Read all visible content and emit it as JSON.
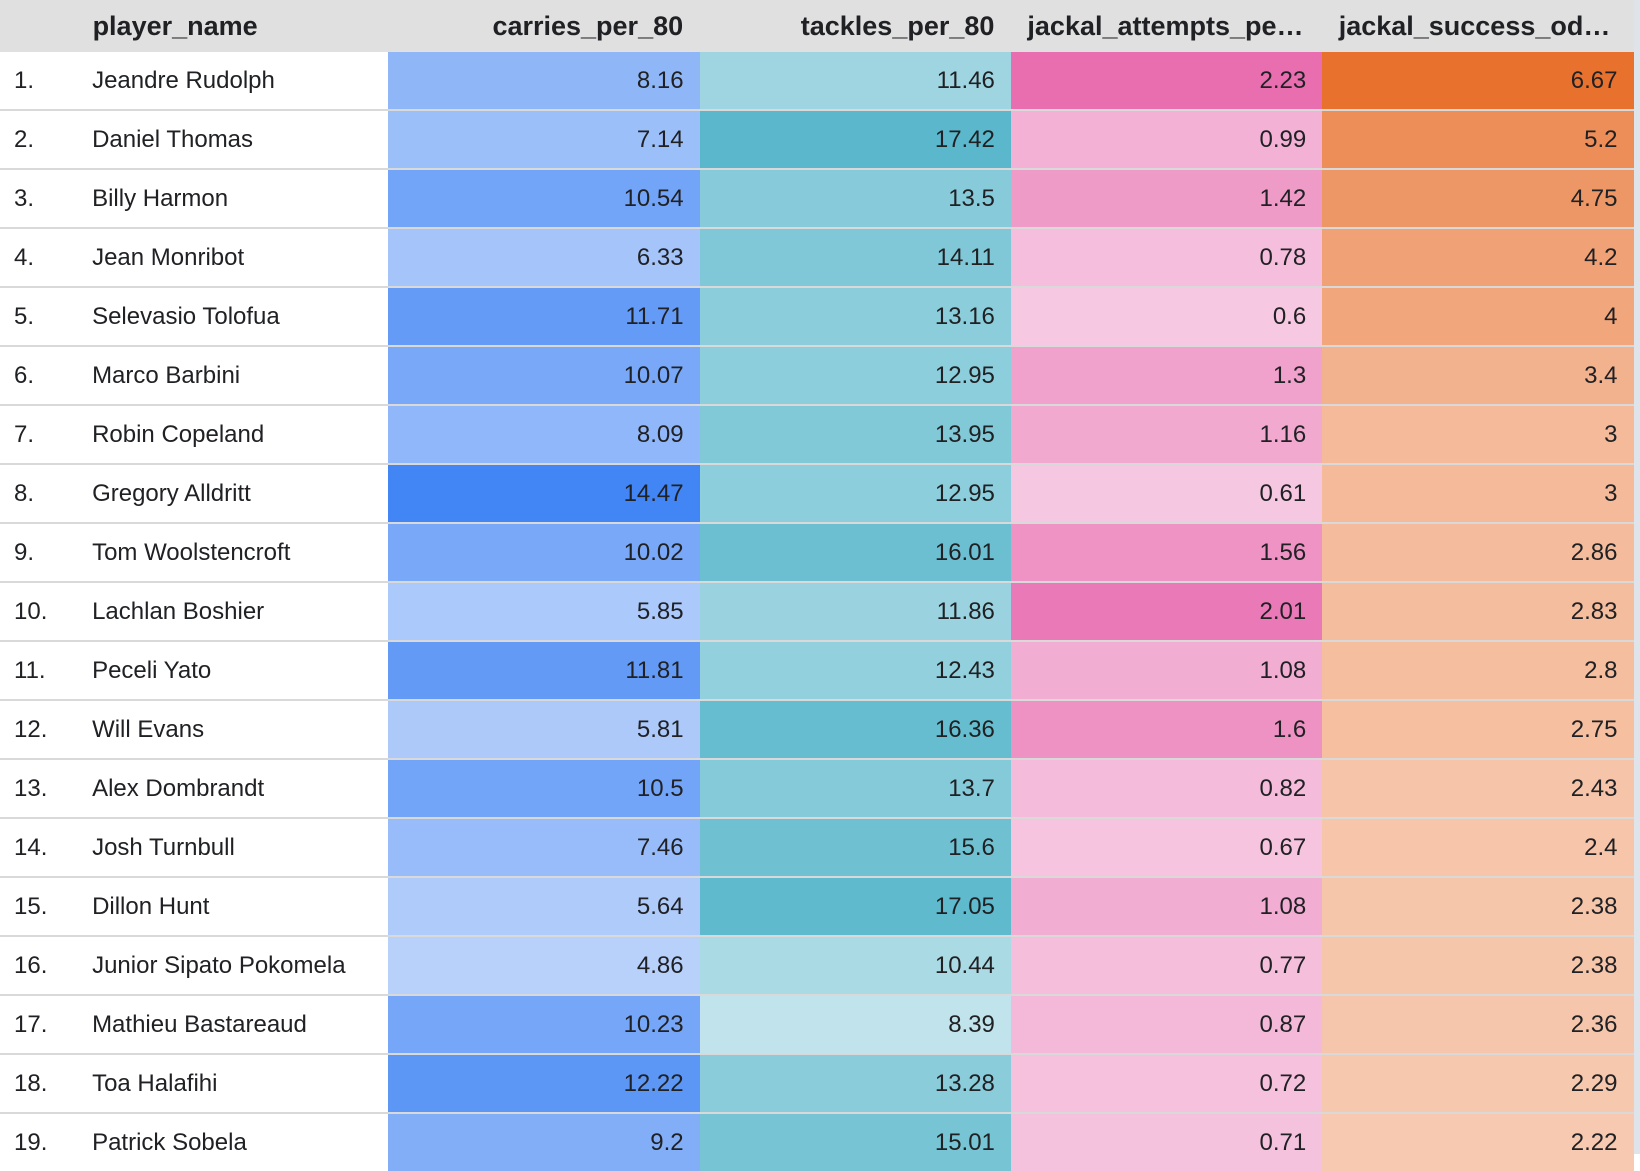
{
  "columns": {
    "index": "",
    "player_name": "player_name",
    "carries": "carries_per_80",
    "tackles": "tackles_per_80",
    "jackal_attempts": "jackal_attempts_per…",
    "jackal_success": "jackal_success_odd…"
  },
  "colors": {
    "carries": "#4285f4",
    "tackles": "#5bb8cc",
    "jackal_attempts": "#e86eb0",
    "jackal_success": "#e8712e"
  },
  "color_ranges": {
    "carries": [
      4.86,
      14.47
    ],
    "tackles": [
      8.39,
      17.42
    ],
    "jackal_attempts": [
      0.6,
      2.23
    ],
    "jackal_success": [
      2.22,
      6.67
    ]
  },
  "rows": [
    {
      "index": "1.",
      "player_name": "Jeandre Rudolph",
      "carries": "8.16",
      "tackles": "11.46",
      "jackal_attempts": "2.23",
      "jackal_success": "6.67"
    },
    {
      "index": "2.",
      "player_name": "Daniel Thomas",
      "carries": "7.14",
      "tackles": "17.42",
      "jackal_attempts": "0.99",
      "jackal_success": "5.2"
    },
    {
      "index": "3.",
      "player_name": "Billy Harmon",
      "carries": "10.54",
      "tackles": "13.5",
      "jackal_attempts": "1.42",
      "jackal_success": "4.75"
    },
    {
      "index": "4.",
      "player_name": "Jean Monribot",
      "carries": "6.33",
      "tackles": "14.11",
      "jackal_attempts": "0.78",
      "jackal_success": "4.2"
    },
    {
      "index": "5.",
      "player_name": "Selevasio Tolofua",
      "carries": "11.71",
      "tackles": "13.16",
      "jackal_attempts": "0.6",
      "jackal_success": "4"
    },
    {
      "index": "6.",
      "player_name": "Marco Barbini",
      "carries": "10.07",
      "tackles": "12.95",
      "jackal_attempts": "1.3",
      "jackal_success": "3.4"
    },
    {
      "index": "7.",
      "player_name": "Robin Copeland",
      "carries": "8.09",
      "tackles": "13.95",
      "jackal_attempts": "1.16",
      "jackal_success": "3"
    },
    {
      "index": "8.",
      "player_name": "Gregory Alldritt",
      "carries": "14.47",
      "tackles": "12.95",
      "jackal_attempts": "0.61",
      "jackal_success": "3"
    },
    {
      "index": "9.",
      "player_name": "Tom Woolstencroft",
      "carries": "10.02",
      "tackles": "16.01",
      "jackal_attempts": "1.56",
      "jackal_success": "2.86"
    },
    {
      "index": "10.",
      "player_name": "Lachlan Boshier",
      "carries": "5.85",
      "tackles": "11.86",
      "jackal_attempts": "2.01",
      "jackal_success": "2.83"
    },
    {
      "index": "11.",
      "player_name": "Peceli Yato",
      "carries": "11.81",
      "tackles": "12.43",
      "jackal_attempts": "1.08",
      "jackal_success": "2.8"
    },
    {
      "index": "12.",
      "player_name": "Will Evans",
      "carries": "5.81",
      "tackles": "16.36",
      "jackal_attempts": "1.6",
      "jackal_success": "2.75"
    },
    {
      "index": "13.",
      "player_name": "Alex Dombrandt",
      "carries": "10.5",
      "tackles": "13.7",
      "jackal_attempts": "0.82",
      "jackal_success": "2.43"
    },
    {
      "index": "14.",
      "player_name": "Josh Turnbull",
      "carries": "7.46",
      "tackles": "15.6",
      "jackal_attempts": "0.67",
      "jackal_success": "2.4"
    },
    {
      "index": "15.",
      "player_name": "Dillon Hunt",
      "carries": "5.64",
      "tackles": "17.05",
      "jackal_attempts": "1.08",
      "jackal_success": "2.38"
    },
    {
      "index": "16.",
      "player_name": "Junior Sipato Pokomela",
      "carries": "4.86",
      "tackles": "10.44",
      "jackal_attempts": "0.77",
      "jackal_success": "2.38"
    },
    {
      "index": "17.",
      "player_name": "Mathieu Bastareaud",
      "carries": "10.23",
      "tackles": "8.39",
      "jackal_attempts": "0.87",
      "jackal_success": "2.36"
    },
    {
      "index": "18.",
      "player_name": "Toa Halafihi",
      "carries": "12.22",
      "tackles": "13.28",
      "jackal_attempts": "0.72",
      "jackal_success": "2.29"
    },
    {
      "index": "19.",
      "player_name": "Patrick Sobela",
      "carries": "9.2",
      "tackles": "15.01",
      "jackal_attempts": "0.71",
      "jackal_success": "2.22"
    }
  ]
}
